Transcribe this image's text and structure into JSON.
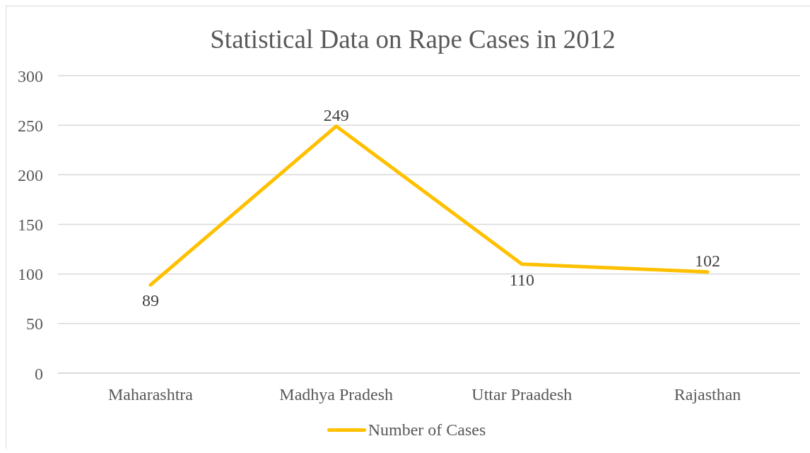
{
  "chart_data": {
    "type": "line",
    "title": "Statistical Data on Rape Cases in 2012",
    "categories": [
      "Maharashtra",
      "Madhya Pradesh",
      "Uttar Praadesh",
      "Rajasthan"
    ],
    "series": [
      {
        "name": "Number of Cases",
        "color": "#ffc000",
        "values": [
          89,
          249,
          110,
          102
        ]
      }
    ],
    "ylim": [
      0,
      300
    ],
    "yticks": [
      0,
      50,
      100,
      150,
      200,
      250,
      300
    ],
    "grid": "y",
    "legend": "bottom",
    "data_labels": true,
    "marker": "none",
    "line_style": "solid"
  }
}
